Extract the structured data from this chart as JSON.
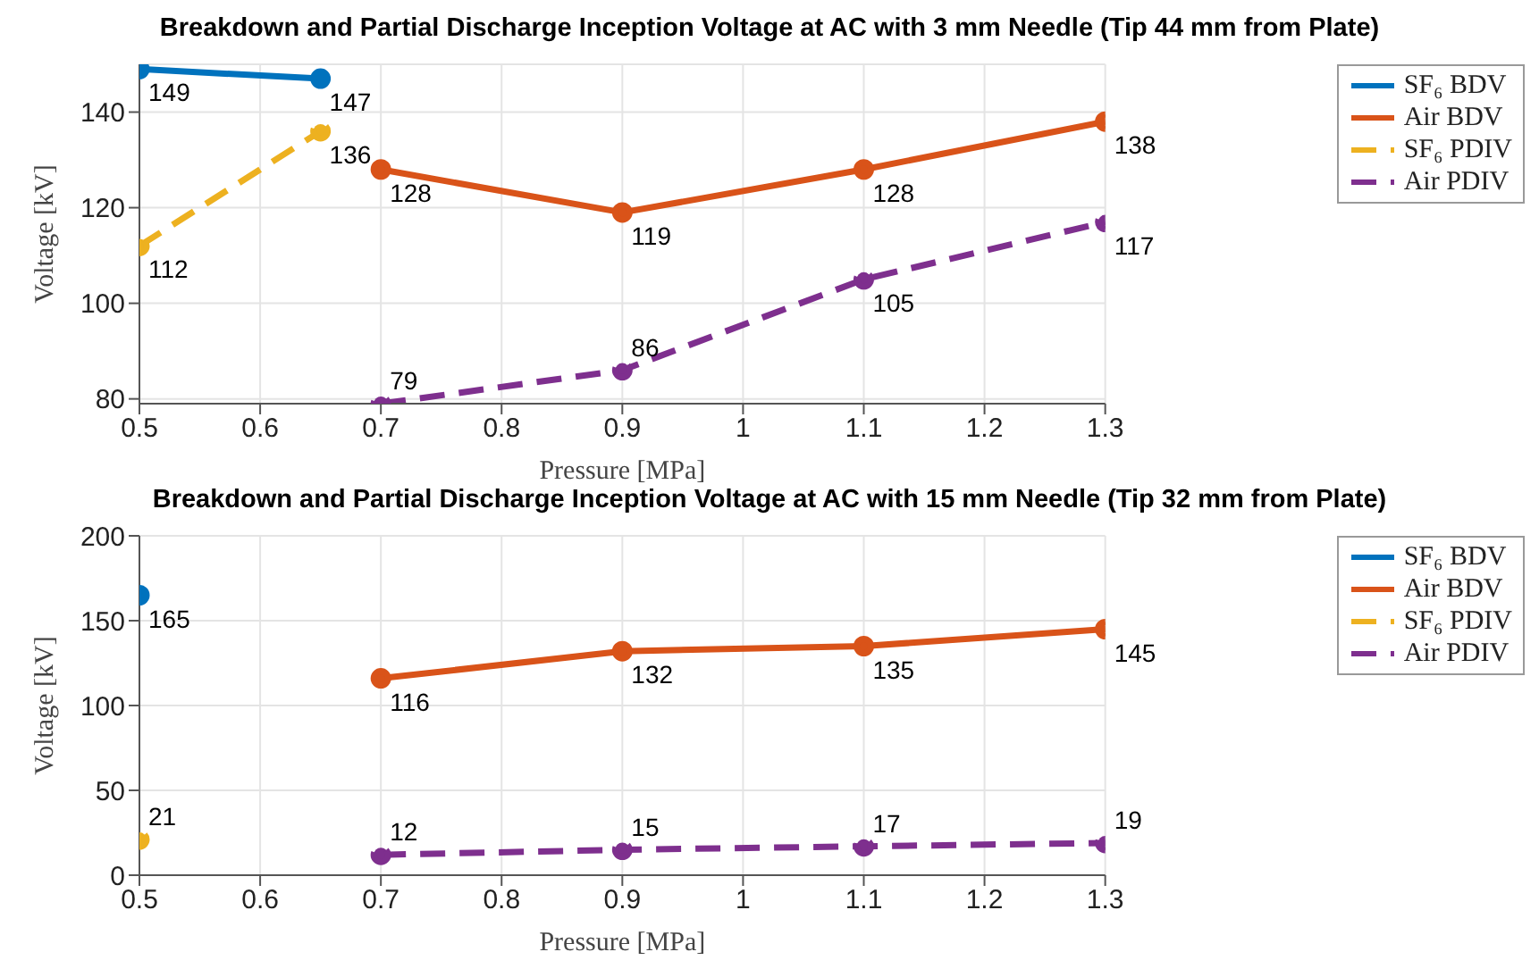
{
  "chart_data": [
    {
      "type": "line",
      "title": "Breakdown and Partial Discharge Inception Voltage at AC with 3 mm Needle (Tip 44 mm from Plate)",
      "xlabel": "Pressure [MPa]",
      "ylabel": "Voltage [kV]",
      "xlim": [
        0.5,
        1.3
      ],
      "xticks": [
        0.5,
        0.6,
        0.7,
        0.8,
        0.9,
        1,
        1.1,
        1.2,
        1.3
      ],
      "ylim": [
        79,
        150
      ],
      "yticks": [
        80,
        100,
        120,
        140
      ],
      "grid": true,
      "legend": "right",
      "marker": "circle",
      "data_labels": true,
      "series": [
        {
          "name": "SF₆ BDV",
          "color": "#0072bd",
          "line_style": "solid",
          "x": [
            0.5,
            0.65
          ],
          "values": [
            149,
            147
          ]
        },
        {
          "name": "Air BDV",
          "color": "#d95319",
          "line_style": "solid",
          "x": [
            0.7,
            0.9,
            1.1,
            1.3
          ],
          "values": [
            128,
            119,
            128,
            138
          ]
        },
        {
          "name": "SF₆ PDIV",
          "color": "#edb120",
          "line_style": "dashed",
          "x": [
            0.5,
            0.65
          ],
          "values": [
            112,
            136
          ]
        },
        {
          "name": "Air PDIV",
          "color": "#7e2f8e",
          "line_style": "dashed",
          "x": [
            0.7,
            0.9,
            1.1,
            1.3
          ],
          "values": [
            79,
            86,
            105,
            117
          ]
        }
      ]
    },
    {
      "type": "line",
      "title": "Breakdown and Partial Discharge Inception Voltage at AC with 15 mm Needle (Tip 32 mm from Plate)",
      "xlabel": "Pressure [MPa]",
      "ylabel": "Voltage [kV]",
      "xlim": [
        0.5,
        1.3
      ],
      "xticks": [
        0.5,
        0.6,
        0.7,
        0.8,
        0.9,
        1,
        1.1,
        1.2,
        1.3
      ],
      "ylim": [
        0,
        200
      ],
      "yticks": [
        0,
        50,
        100,
        150,
        200
      ],
      "grid": true,
      "legend": "right",
      "marker": "circle",
      "data_labels": true,
      "series": [
        {
          "name": "SF₆ BDV",
          "color": "#0072bd",
          "line_style": "solid",
          "x": [
            0.5
          ],
          "values": [
            165
          ]
        },
        {
          "name": "Air BDV",
          "color": "#d95319",
          "line_style": "solid",
          "x": [
            0.7,
            0.9,
            1.1,
            1.3
          ],
          "values": [
            116,
            132,
            135,
            145
          ]
        },
        {
          "name": "SF₆ PDIV",
          "color": "#edb120",
          "line_style": "dashed",
          "x": [
            0.5
          ],
          "values": [
            21
          ]
        },
        {
          "name": "Air PDIV",
          "color": "#7e2f8e",
          "line_style": "dashed",
          "x": [
            0.7,
            0.9,
            1.1,
            1.3
          ],
          "values": [
            12,
            15,
            17,
            19
          ]
        }
      ]
    }
  ]
}
